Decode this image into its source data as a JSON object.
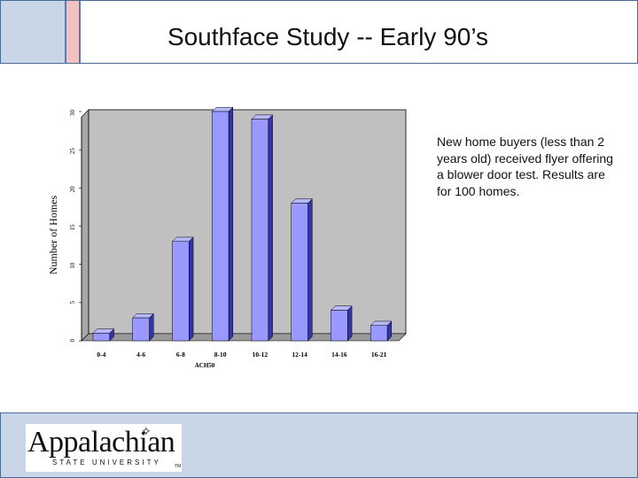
{
  "slide": {
    "title": "Southface Study -- Early 90’s",
    "note": "New home buyers (less than 2 years old) received flyer offering a blower door test.  Results are for 100 homes."
  },
  "logo": {
    "name": "Appalachian",
    "subtitle": "STATE UNIVERSITY",
    "tm": "TM"
  },
  "colors": {
    "bar_face": "#9999ff",
    "bar_side": "#3333aa",
    "plot_bg": "#c0c0c0",
    "header_accent": "#c9d6e8"
  },
  "chart_data": {
    "type": "bar",
    "categories": [
      "0-4",
      "4-6",
      "6-8",
      "8-10",
      "10-12",
      "12-14",
      "14-16",
      "16-21"
    ],
    "values": [
      1,
      3,
      13,
      30,
      29,
      18,
      4,
      2
    ],
    "xlabel": "ACH50",
    "ylabel": "Number of Homes",
    "ylim": [
      0,
      30
    ],
    "yticks": [
      "0",
      "5",
      "10",
      "15",
      "20",
      "25",
      "30"
    ],
    "grid": false
  }
}
